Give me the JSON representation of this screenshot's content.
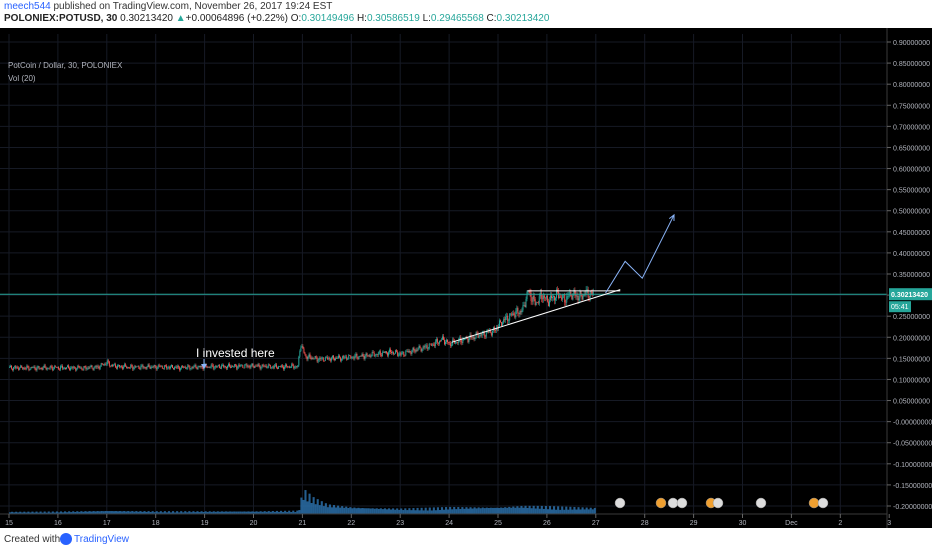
{
  "header": {
    "username": "meech544",
    "published_text": " published on TradingView.com, November 26, 2017 19:24 EST",
    "symbol": "POLONIEX:POTUSD, 30",
    "last": "0.30213420",
    "change_arrow": "▲",
    "change": "+0.00064896 (+0.22%)",
    "o_label": "O:",
    "o_value": "0.30149496",
    "h_label": "H:",
    "h_value": "0.30586519",
    "l_label": "L:",
    "l_value": "0.29465568",
    "c_label": "C:",
    "c_value": "0.30213420"
  },
  "chart_title": "PotCoin / Dollar, 30, POLONIEX",
  "volume_label": "Vol (20)",
  "annotation": "I invested here",
  "price_tag": "0.30213420",
  "countdown": "05:41",
  "footer": {
    "created_with": "Created with",
    "brand": "TradingView"
  },
  "colors": {
    "background": "#000000",
    "up": "#26a69a",
    "down": "#ef5350",
    "line": "#ffffff",
    "projection": "#8ab4f8",
    "volume": "#2a6fa8",
    "price_line": "#26a69a"
  },
  "chart_data": {
    "type": "candlestick",
    "title": "PotCoin / Dollar, 30, POLONIEX",
    "x_ticks": [
      "15",
      "16",
      "17",
      "18",
      "19",
      "20",
      "21",
      "22",
      "23",
      "24",
      "25",
      "26",
      "27",
      "28",
      "29",
      "30",
      "Dec",
      "2",
      "3"
    ],
    "y_ticks": [
      "0.90000000",
      "0.85000000",
      "0.80000000",
      "0.75000000",
      "0.70000000",
      "0.65000000",
      "0.60000000",
      "0.55000000",
      "0.50000000",
      "0.45000000",
      "0.40000000",
      "0.35000000",
      "0.30000000",
      "0.25000000",
      "0.20000000",
      "0.15000000",
      "0.10000000",
      "0.05000000",
      "-0.00000000",
      "-0.05000000",
      "-0.10000000",
      "-0.15000000",
      "-0.20000000"
    ],
    "y_range": [
      -0.2,
      0.9
    ],
    "x_range": [
      15,
      33.7
    ],
    "price_path": [
      [
        15.0,
        0.128
      ],
      [
        15.5,
        0.127
      ],
      [
        16.0,
        0.128
      ],
      [
        16.5,
        0.127
      ],
      [
        16.8,
        0.129
      ],
      [
        17.0,
        0.14
      ],
      [
        17.1,
        0.132
      ],
      [
        17.5,
        0.129
      ],
      [
        18.0,
        0.13
      ],
      [
        18.5,
        0.128
      ],
      [
        19.0,
        0.13
      ],
      [
        19.5,
        0.131
      ],
      [
        20.0,
        0.132
      ],
      [
        20.5,
        0.13
      ],
      [
        20.9,
        0.131
      ],
      [
        20.95,
        0.185
      ],
      [
        21.05,
        0.155
      ],
      [
        21.3,
        0.148
      ],
      [
        21.6,
        0.15
      ],
      [
        21.9,
        0.152
      ],
      [
        22.2,
        0.155
      ],
      [
        22.5,
        0.16
      ],
      [
        22.8,
        0.165
      ],
      [
        23.0,
        0.16
      ],
      [
        23.3,
        0.17
      ],
      [
        23.6,
        0.18
      ],
      [
        23.85,
        0.195
      ],
      [
        24.0,
        0.185
      ],
      [
        24.3,
        0.195
      ],
      [
        24.6,
        0.205
      ],
      [
        24.9,
        0.215
      ],
      [
        25.1,
        0.24
      ],
      [
        25.3,
        0.255
      ],
      [
        25.5,
        0.265
      ],
      [
        25.6,
        0.31
      ],
      [
        25.75,
        0.28
      ],
      [
        25.9,
        0.3
      ],
      [
        26.0,
        0.285
      ],
      [
        26.2,
        0.302
      ],
      [
        26.35,
        0.29
      ],
      [
        26.5,
        0.303
      ],
      [
        26.65,
        0.295
      ],
      [
        26.8,
        0.305
      ],
      [
        26.95,
        0.302
      ]
    ],
    "volume_profile": [
      [
        15.0,
        0.08
      ],
      [
        16.0,
        0.09
      ],
      [
        17.0,
        0.12
      ],
      [
        18.0,
        0.1
      ],
      [
        19.0,
        0.1
      ],
      [
        20.0,
        0.1
      ],
      [
        20.9,
        0.12
      ],
      [
        21.0,
        0.9
      ],
      [
        21.2,
        0.6
      ],
      [
        21.5,
        0.35
      ],
      [
        22.0,
        0.25
      ],
      [
        22.5,
        0.22
      ],
      [
        23.0,
        0.2
      ],
      [
        23.5,
        0.22
      ],
      [
        24.0,
        0.25
      ],
      [
        24.5,
        0.25
      ],
      [
        25.0,
        0.25
      ],
      [
        25.5,
        0.3
      ],
      [
        26.0,
        0.28
      ],
      [
        26.5,
        0.25
      ],
      [
        27.0,
        0.22
      ]
    ],
    "annotations": {
      "support_line": [
        [
          24.05,
          0.188
        ],
        [
          27.5,
          0.313
        ]
      ],
      "resistance_line": [
        [
          25.6,
          0.31
        ],
        [
          27.5,
          0.31
        ]
      ],
      "projection_path": [
        [
          27.2,
          0.305
        ],
        [
          27.6,
          0.38
        ],
        [
          27.95,
          0.34
        ],
        [
          28.6,
          0.49
        ]
      ],
      "current_price": 0.3021342
    }
  }
}
